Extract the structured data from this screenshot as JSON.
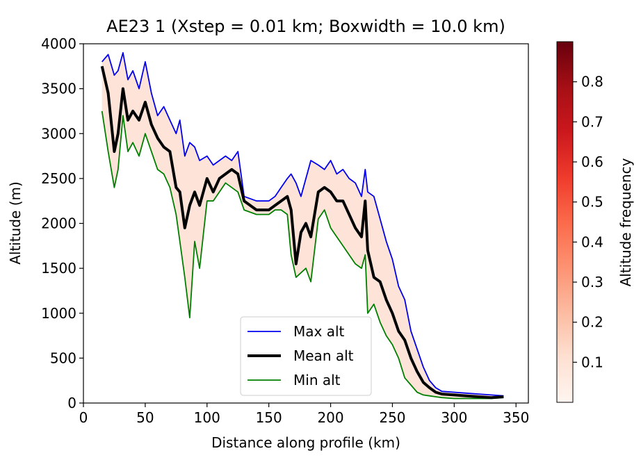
{
  "chart_data": {
    "type": "line",
    "title": "AE23 1 (Xstep = 0.01 km; Boxwidth = 10.0 km)",
    "xlabel": "Distance along profile (km)",
    "ylabel": "Altitude (m)",
    "xlim": [
      0,
      360
    ],
    "ylim": [
      0,
      4000
    ],
    "x_ticks": [
      0,
      50,
      100,
      150,
      200,
      250,
      300,
      350
    ],
    "y_ticks": [
      0,
      500,
      1000,
      1500,
      2000,
      2500,
      3000,
      3500,
      4000
    ],
    "grid": false,
    "legend_position": "lower-center",
    "x": [
      15,
      20,
      25,
      28,
      32,
      36,
      40,
      45,
      50,
      55,
      60,
      65,
      70,
      75,
      78,
      82,
      86,
      90,
      94,
      100,
      105,
      110,
      115,
      120,
      125,
      130,
      140,
      150,
      155,
      160,
      165,
      168,
      172,
      176,
      180,
      184,
      190,
      195,
      200,
      205,
      210,
      215,
      220,
      225,
      228,
      230,
      235,
      240,
      245,
      250,
      255,
      260,
      265,
      270,
      275,
      280,
      285,
      290,
      300,
      310,
      320,
      330,
      340
    ],
    "series": [
      {
        "name": "Max alt",
        "color": "#0000ee",
        "values": [
          3800,
          3880,
          3650,
          3700,
          3900,
          3600,
          3700,
          3500,
          3800,
          3450,
          3200,
          3300,
          3150,
          3000,
          3150,
          2750,
          2900,
          2850,
          2700,
          2750,
          2650,
          2700,
          2750,
          2700,
          2800,
          2300,
          2250,
          2250,
          2300,
          2400,
          2500,
          2550,
          2450,
          2300,
          2500,
          2700,
          2650,
          2600,
          2700,
          2550,
          2600,
          2500,
          2450,
          2300,
          2600,
          2350,
          2300,
          2050,
          1800,
          1600,
          1300,
          1150,
          800,
          600,
          400,
          250,
          170,
          130,
          120,
          110,
          100,
          90,
          80
        ]
      },
      {
        "name": "Mean alt",
        "color": "#000000",
        "values": [
          3750,
          3450,
          2800,
          3000,
          3500,
          3150,
          3250,
          3150,
          3350,
          3100,
          2950,
          2850,
          2800,
          2400,
          2350,
          1950,
          2200,
          2350,
          2200,
          2500,
          2350,
          2500,
          2550,
          2600,
          2550,
          2250,
          2150,
          2150,
          2200,
          2250,
          2300,
          2150,
          1550,
          1900,
          2000,
          1850,
          2350,
          2400,
          2350,
          2250,
          2250,
          2100,
          1950,
          1850,
          2250,
          1700,
          1400,
          1350,
          1150,
          1000,
          800,
          700,
          500,
          350,
          230,
          170,
          120,
          100,
          90,
          80,
          70,
          60,
          70
        ]
      },
      {
        "name": "Min alt",
        "color": "#008000",
        "values": [
          3250,
          2800,
          2400,
          2600,
          3200,
          2800,
          2900,
          2750,
          3000,
          2800,
          2600,
          2550,
          2400,
          2100,
          1800,
          1400,
          950,
          1800,
          1500,
          2250,
          2250,
          2350,
          2450,
          2400,
          2350,
          2150,
          2100,
          2100,
          2150,
          2150,
          2100,
          1650,
          1400,
          1450,
          1500,
          1350,
          2050,
          2150,
          1950,
          1850,
          1750,
          1650,
          1550,
          1500,
          1650,
          1000,
          1100,
          900,
          750,
          650,
          500,
          280,
          200,
          120,
          90,
          80,
          70,
          60,
          50,
          50,
          50,
          50,
          60
        ]
      }
    ],
    "colorbar": {
      "label": "Altitude frequency",
      "min": 0,
      "max": 0.9,
      "ticks": [
        0.1,
        0.2,
        0.3,
        0.4,
        0.5,
        0.6,
        0.7,
        0.8
      ],
      "colormap": "Reds"
    }
  }
}
